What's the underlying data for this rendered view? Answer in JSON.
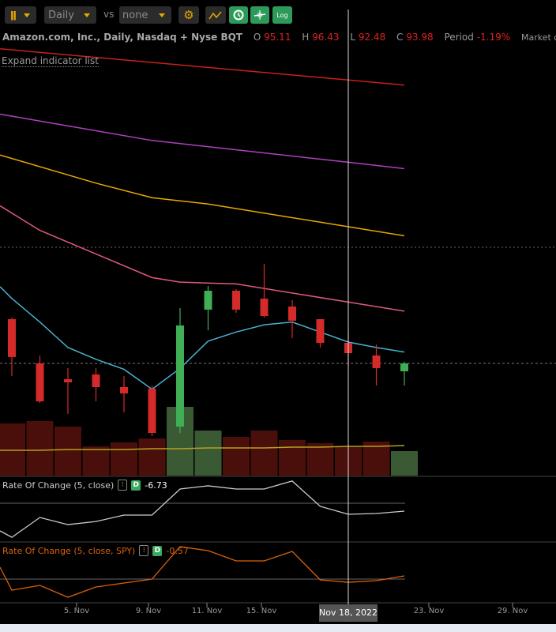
{
  "toolbar": {
    "chart_type_icon": "candlestick-icon",
    "interval": "Daily",
    "vs_label": "vs",
    "compare": "none",
    "settings_icon": "gear-icon",
    "draw_icon": "draw-line-icon",
    "clock_icon": "clock-icon",
    "crosshair_icon": "crosshair-icon",
    "log_label": "Log"
  },
  "header": {
    "title": "Amazon.com, Inc., Daily, Nasdaq + Nyse BQT",
    "o_label": "O",
    "o": "95.11",
    "h_label": "H",
    "h": "96.43",
    "l_label": "L",
    "l": "92.48",
    "c_label": "C",
    "c": "93.98",
    "period_label": "Period",
    "period": "-1.19%",
    "status": "Market closed",
    "expand": "Expand indicator list"
  },
  "indicators": [
    {
      "label": "Rate Of Change (5, close)",
      "badge": "D",
      "value": "-6.73",
      "color": "#cccccc"
    },
    {
      "label": "Rate Of Change (5, close, SPY)",
      "badge": "D",
      "value": "-0.57",
      "color": "#d9620a"
    }
  ],
  "xaxis": {
    "labels": [
      "5. Nov",
      "9. Nov",
      "11. Nov",
      "15. Nov",
      "23. Nov",
      "29. Nov"
    ],
    "crosshair_label": "Nov 18, 2022"
  },
  "colors": {
    "up": "#3fae55",
    "down": "#d42a2a",
    "vol_up": "#3a5a33",
    "vol_down": "#4a0f0a",
    "background": "#000000"
  },
  "chart_data": {
    "type": "candlestick",
    "dates": [
      "Nov 2",
      "Nov 3",
      "Nov 4",
      "Nov 7",
      "Nov 8",
      "Nov 9",
      "Nov 10",
      "Nov 11",
      "Nov 14",
      "Nov 15",
      "Nov 16",
      "Nov 17",
      "Nov 18",
      "Nov 21",
      "Nov 22"
    ],
    "ohlc": [
      [
        97.72,
        93.55,
        97.9,
        91.46
      ],
      [
        92.85,
        88.67,
        93.72,
        88.5
      ],
      [
        91.11,
        90.76,
        92.33,
        87.28
      ],
      [
        91.63,
        90.24,
        92.33,
        88.67
      ],
      [
        90.24,
        89.54,
        91.46,
        87.46
      ],
      [
        90.07,
        85.19,
        90.41,
        84.84
      ],
      [
        85.89,
        97.03,
        98.94,
        85.19
      ],
      [
        98.77,
        100.85,
        101.38,
        96.5
      ],
      [
        100.85,
        98.77,
        101.03,
        98.42
      ],
      [
        99.98,
        98.07,
        103.81,
        97.9
      ],
      [
        99.11,
        97.55,
        99.81,
        95.63
      ],
      [
        97.72,
        95.11,
        97.72,
        94.59
      ],
      [
        95.11,
        93.98,
        96.43,
        92.48
      ],
      [
        93.72,
        92.33,
        94.94,
        90.41
      ],
      [
        91.98,
        92.85,
        93.02,
        90.41
      ]
    ],
    "volume_relative": [
      66,
      69,
      62,
      37,
      42,
      47,
      87,
      57,
      49,
      57,
      45,
      41,
      36,
      43,
      31
    ],
    "volume_ma_relative": [
      32,
      32,
      33,
      33,
      33,
      34,
      34,
      35,
      35,
      35,
      36,
      36,
      37,
      37,
      38
    ],
    "current_price": 93.98,
    "moving_averages": [
      {
        "color": "#c8201c",
        "points": [
          [
            -0.42,
            127.5
          ],
          [
            14,
            123.5
          ]
        ]
      },
      {
        "color": "#b040c0",
        "points": [
          [
            -0.42,
            120.3
          ],
          [
            5,
            117.4
          ],
          [
            12,
            115.0
          ],
          [
            14,
            114.3
          ]
        ]
      },
      {
        "color": "#e8a800",
        "points": [
          [
            -0.42,
            115.8
          ],
          [
            3,
            112.7
          ],
          [
            5,
            111.1
          ],
          [
            7,
            110.4
          ],
          [
            12,
            107.9
          ],
          [
            14,
            106.9
          ]
        ]
      },
      {
        "color": "#e05a7a",
        "points": [
          [
            -0.42,
            110.2
          ],
          [
            1,
            107.5
          ],
          [
            5,
            102.3
          ],
          [
            6,
            101.8
          ],
          [
            8,
            101.6
          ],
          [
            12,
            99.6
          ],
          [
            14,
            98.6
          ]
        ]
      },
      {
        "color": "#4ab0d0",
        "points": [
          [
            -0.42,
            101.3
          ],
          [
            0,
            100.0
          ],
          [
            1,
            97.4
          ],
          [
            2,
            94.6
          ],
          [
            3,
            93.3
          ],
          [
            4,
            92.2
          ],
          [
            5,
            90.0
          ],
          [
            6,
            92.3
          ],
          [
            7,
            95.3
          ],
          [
            8,
            96.3
          ],
          [
            9,
            97.1
          ],
          [
            10,
            97.4
          ],
          [
            11,
            96.3
          ],
          [
            12,
            95.2
          ],
          [
            13,
            94.6
          ],
          [
            14,
            94.1
          ]
        ]
      }
    ],
    "roc": [
      -20.7,
      -8.65,
      -13.0,
      -11.1,
      -7.2,
      -7.2,
      8.65,
      10.6,
      8.65,
      8.65,
      13.5,
      -1.9,
      -6.73,
      -6.25,
      -4.8
    ],
    "roc_spy": [
      -1.96,
      -1.12,
      -3.22,
      -1.4,
      -0.7,
      0.0,
      5.74,
      5.04,
      3.22,
      3.22,
      4.9,
      -0.14,
      -0.57,
      -0.28,
      0.56
    ],
    "crosshair_date": "Nov 18"
  }
}
